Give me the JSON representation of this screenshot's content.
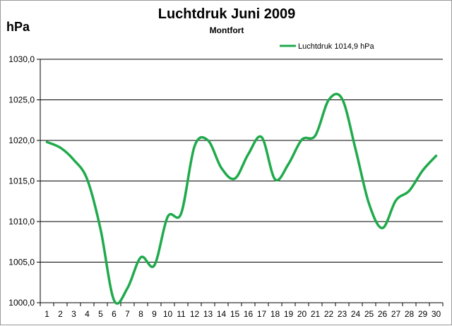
{
  "chart_data": {
    "type": "line",
    "title": "Luchtdruk Juni 2009",
    "subtitle": "Montfort",
    "ylabel": "hPa",
    "ylim": [
      1000,
      1030
    ],
    "yticks": [
      "1000,0",
      "1005,0",
      "1010,0",
      "1015,0",
      "1020,0",
      "1025,0",
      "1030,0"
    ],
    "x": [
      1,
      2,
      3,
      4,
      5,
      6,
      7,
      8,
      9,
      10,
      11,
      12,
      13,
      14,
      15,
      16,
      17,
      18,
      19,
      20,
      21,
      22,
      23,
      24,
      25,
      26,
      27,
      28,
      29,
      30
    ],
    "grid": true,
    "legend_position": "top-right",
    "series": [
      {
        "name": "Luchtdruk 1014,9 hPa",
        "color": "#1faa4b",
        "values": [
          1019.8,
          1019.1,
          1017.6,
          1015.2,
          1009.0,
          1000.3,
          1001.8,
          1005.6,
          1004.6,
          1010.6,
          1011.0,
          1019.3,
          1020.0,
          1016.6,
          1015.3,
          1018.3,
          1020.4,
          1015.2,
          1017.1,
          1020.1,
          1020.6,
          1025.0,
          1025.1,
          1018.9,
          1012.2,
          1009.2,
          1012.6,
          1013.8,
          1016.3,
          1018.1
        ]
      }
    ]
  }
}
